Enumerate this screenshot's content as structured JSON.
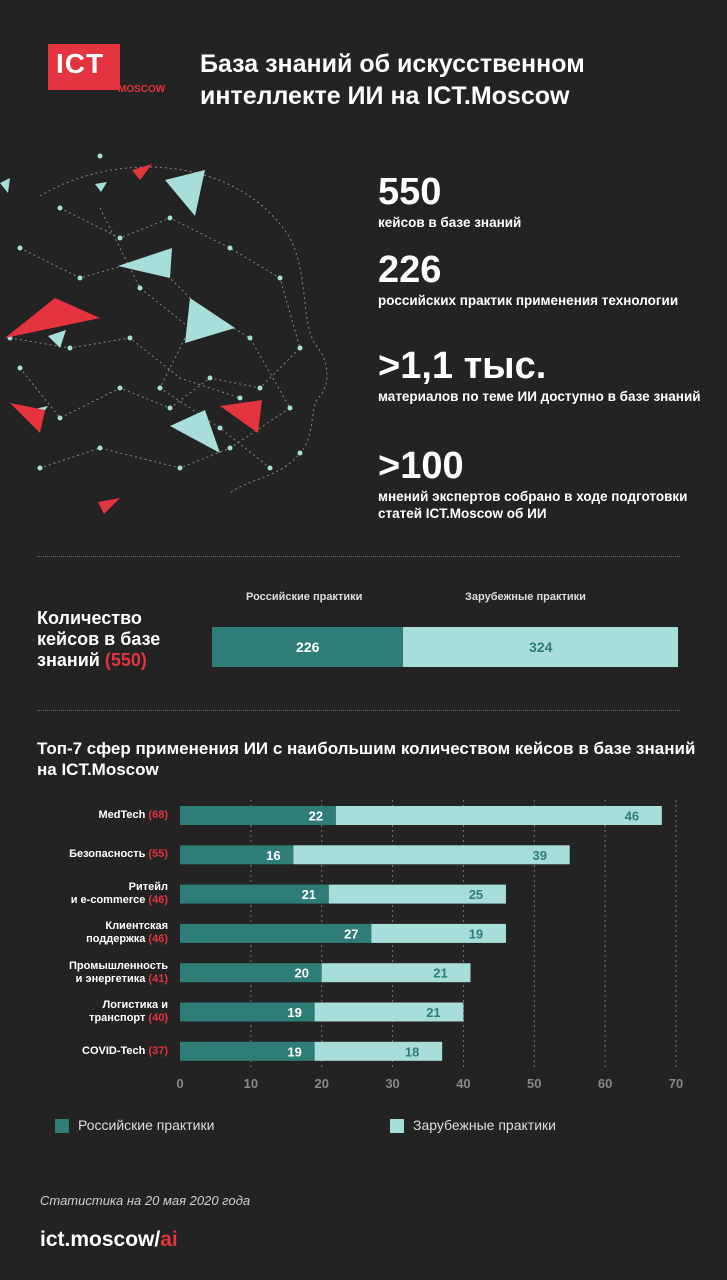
{
  "logo": {
    "text": "ICT",
    "sub": "MOSCOW"
  },
  "title": "База знаний об искусственном интеллекте ИИ на ICT.Moscow",
  "stats": [
    {
      "value": "550",
      "text": "кейсов в базе знаний"
    },
    {
      "value": "226",
      "text": "российских практик применения технологии"
    },
    {
      "value": ">1,1 тыс.",
      "text": "материалов по теме ИИ доступно в базе знаний"
    },
    {
      "value": ">100",
      "text": "мнений экспертов собрано в ходе подготовки статей ICT.Moscow об ИИ"
    }
  ],
  "cases": {
    "label": "Количество кейсов в базе знаний",
    "total": "(550)",
    "russian_header": "Российские практики",
    "foreign_header": "Зарубежные практики",
    "russian": 226,
    "foreign": 324
  },
  "chart_title": "Топ-7 сфер применения ИИ с наибольшим количеством кейсов в базе знаний на ICT.Moscow",
  "chart_data": {
    "type": "bar",
    "orientation": "horizontal",
    "stacked": true,
    "categories": [
      {
        "name": "MedTech",
        "total": "(68)"
      },
      {
        "name": "Безопасность",
        "total": "(55)"
      },
      {
        "name": "Ритейл\nи e-commerce",
        "total": "(46)"
      },
      {
        "name": "Клиентская\nподдержка",
        "total": "(46)"
      },
      {
        "name": "Промышленность\nи энергетика",
        "total": "(41)"
      },
      {
        "name": "Логистика и\nтранспорт",
        "total": "(40)"
      },
      {
        "name": "COVID-Tech",
        "total": "(37)"
      }
    ],
    "series": [
      {
        "name": "Российские практики",
        "values": [
          22,
          16,
          21,
          27,
          20,
          19,
          19
        ]
      },
      {
        "name": "Зарубежные практики",
        "values": [
          46,
          39,
          25,
          19,
          21,
          21,
          18
        ]
      }
    ],
    "xlim": [
      0,
      70
    ],
    "xticks": [
      "0",
      "10",
      "20",
      "30",
      "40",
      "50",
      "60",
      "70"
    ],
    "grid": true,
    "legend": "bottom"
  },
  "colors": {
    "russian": "#2e7e77",
    "foreign": "#a8ded9",
    "accent": "#e3343f",
    "background": "#232323"
  },
  "footer": {
    "note": "Статистика на 20 мая 2020 года",
    "url_main": "ict.moscow/",
    "url_accent": "ai"
  }
}
